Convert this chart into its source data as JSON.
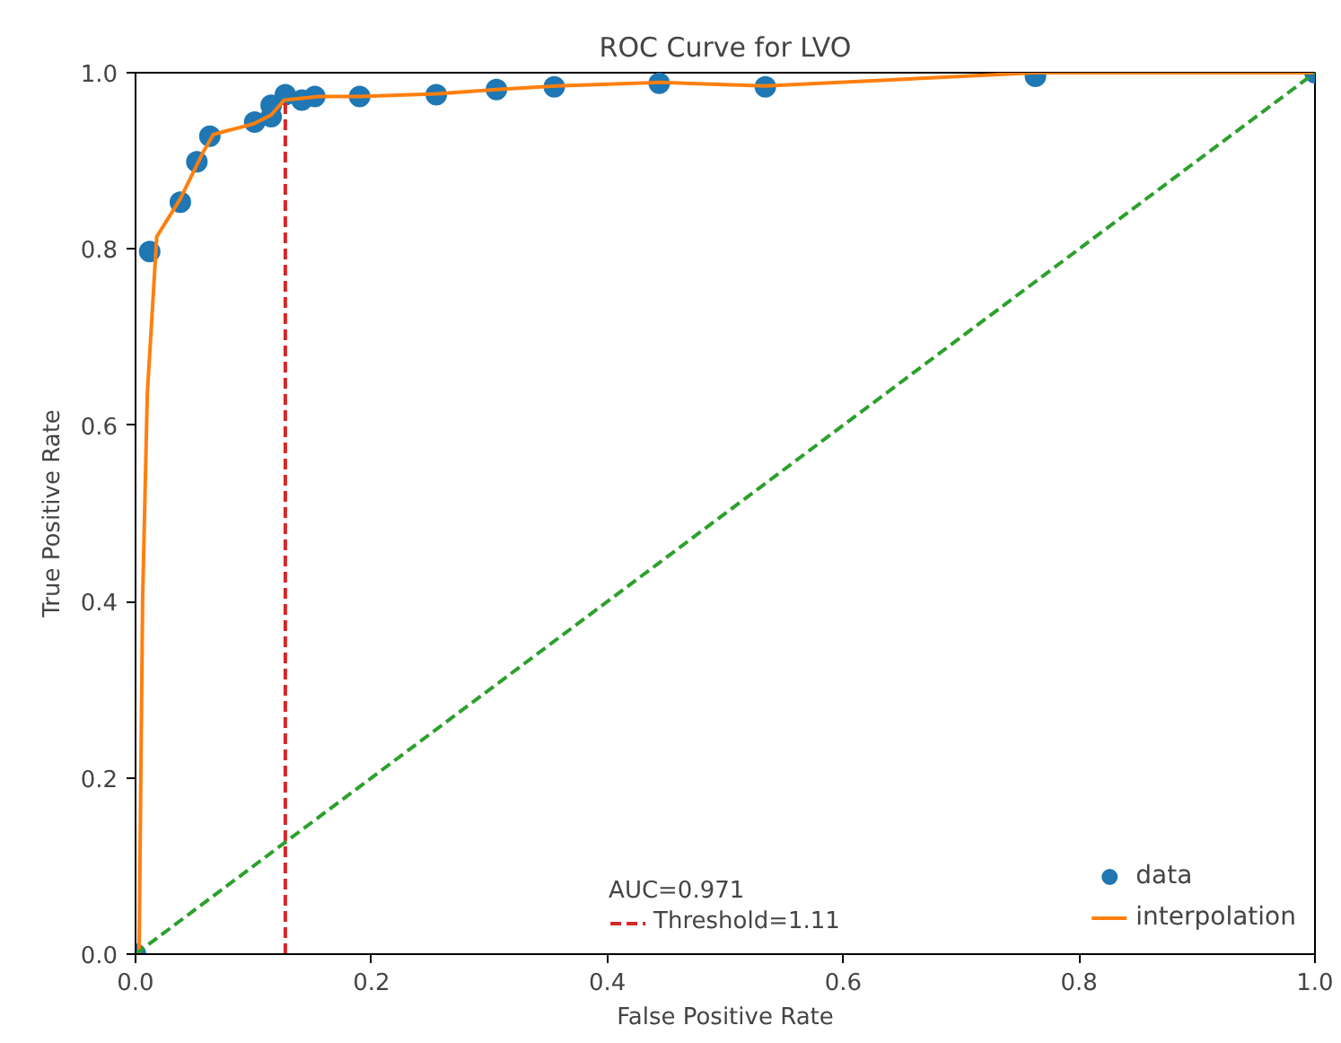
{
  "chart_data": {
    "type": "scatter",
    "title": "ROC Curve for LVO",
    "xlabel": "False Positive Rate",
    "ylabel": "True Positive Rate",
    "annotations": [
      "AUC=0.971"
    ],
    "xlim": [
      0,
      1
    ],
    "ylim": [
      0,
      1
    ],
    "xticks": [
      {
        "value": 0,
        "label": "0.0"
      },
      {
        "value": 0.2,
        "label": "0.2"
      },
      {
        "value": 0.4,
        "label": "0.4"
      },
      {
        "value": 0.6,
        "label": "0.6"
      },
      {
        "value": 0.8,
        "label": "0.8"
      },
      {
        "value": 1,
        "label": "1.0"
      }
    ],
    "yticks": [
      {
        "value": 0,
        "label": "0.0"
      },
      {
        "value": 0.2,
        "label": "0.2"
      },
      {
        "value": 0.4,
        "label": "0.4"
      },
      {
        "value": 0.6,
        "label": "0.6"
      },
      {
        "value": 0.8,
        "label": "0.8"
      },
      {
        "value": 1,
        "label": "1.0"
      }
    ],
    "grid": false,
    "legend": "bottom right",
    "series": [
      {
        "name": "data",
        "marker": "circle",
        "color": "#1f77b4",
        "x": [
          0,
          0.012,
          0.038,
          0.052,
          0.063,
          0.101,
          0.115,
          0.115,
          0.127,
          0.141,
          0.152,
          0.19,
          0.255,
          0.306,
          0.355,
          0.444,
          0.534,
          0.763,
          1.0
        ],
        "values": [
          0,
          0.797,
          0.853,
          0.899,
          0.928,
          0.944,
          0.95,
          0.963,
          0.975,
          0.969,
          0.973,
          0.973,
          0.975,
          0.981,
          0.984,
          0.988,
          0.984,
          0.996,
          1.0
        ]
      },
      {
        "name": "interpolation",
        "type": "line",
        "color": "#ff7f0e",
        "line_style": "solid",
        "x": [
          0,
          0.003,
          0.006,
          0.01,
          0.018,
          0.038,
          0.057,
          0.066,
          0.1,
          0.115,
          0.126,
          0.141,
          0.156,
          0.19,
          0.256,
          0.306,
          0.357,
          0.446,
          0.534,
          0.763,
          1.0
        ],
        "values": [
          0,
          0.0,
          0.403,
          0.636,
          0.814,
          0.857,
          0.909,
          0.93,
          0.942,
          0.952,
          0.969,
          0.971,
          0.973,
          0.973,
          0.976,
          0.981,
          0.985,
          0.989,
          0.985,
          1.0,
          1.0
        ]
      },
      {
        "name": "Threshold=1.11",
        "type": "line",
        "color": "#d62728",
        "line_style": "dashed",
        "x": [
          0.127,
          0.127
        ],
        "values": [
          0,
          0.969
        ]
      },
      {
        "type": "line",
        "color": "#2ca02c",
        "line_style": "dashed",
        "x": [
          0,
          1
        ],
        "values": [
          0,
          1
        ]
      }
    ]
  }
}
